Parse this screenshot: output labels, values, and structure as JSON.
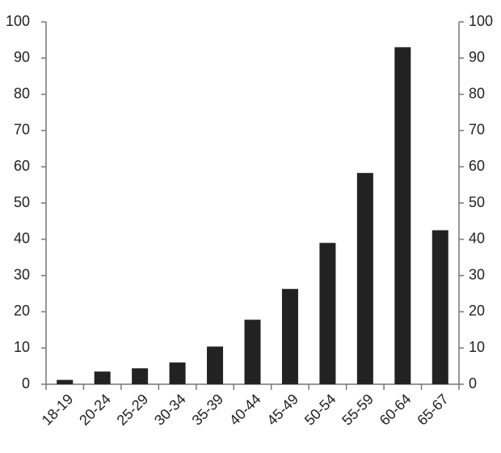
{
  "chart_data": {
    "type": "bar",
    "categories": [
      "18-19",
      "20-24",
      "25-29",
      "30-34",
      "35-39",
      "40-44",
      "45-49",
      "50-54",
      "55-59",
      "60-64",
      "65-67"
    ],
    "values": [
      1.2,
      3.5,
      4.4,
      6.0,
      10.4,
      17.8,
      26.3,
      39.0,
      58.3,
      93.0,
      42.5
    ],
    "color": "#222222",
    "ylim": [
      0,
      100
    ],
    "yticks": [
      0,
      10,
      20,
      30,
      40,
      50,
      60,
      70,
      80,
      90,
      100
    ],
    "y2lim": [
      0,
      100
    ],
    "y2ticks": [
      0,
      10,
      20,
      30,
      40,
      50,
      60,
      70,
      80,
      90,
      100
    ],
    "grid": false
  }
}
